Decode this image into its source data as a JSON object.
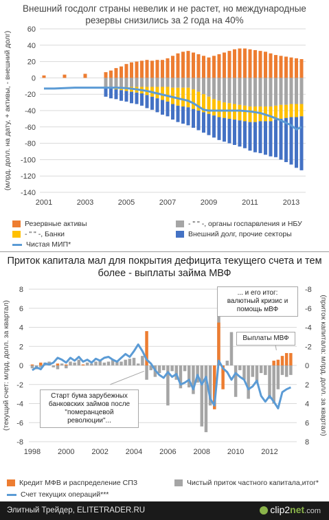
{
  "chart_data": [
    {
      "type": "bar",
      "title": "Внешний госдолг страны невелик и не растет, но международные резервы снизились за 2 года на 40%",
      "ylabel": "(млрд. долл. на дату, + активы, - внешний долг)",
      "ylim": [
        -140,
        60
      ],
      "yticks": [
        "60",
        "40",
        "20",
        "0",
        "-20",
        "-40",
        "-60",
        "-80",
        "-100",
        "-120",
        "-140"
      ],
      "xticks": [
        "2001",
        "2003",
        "2005",
        "2007",
        "2009",
        "2011",
        "2013"
      ],
      "grid": true,
      "legend_position": "bottom",
      "x": [
        2001.0,
        2002.0,
        2003.0,
        2004.0,
        2004.25,
        2004.5,
        2004.75,
        2005.0,
        2005.25,
        2005.5,
        2005.75,
        2006.0,
        2006.25,
        2006.5,
        2006.75,
        2007.0,
        2007.25,
        2007.5,
        2007.75,
        2008.0,
        2008.25,
        2008.5,
        2008.75,
        2009.0,
        2009.25,
        2009.5,
        2009.75,
        2010.0,
        2010.25,
        2010.5,
        2010.75,
        2011.0,
        2011.25,
        2011.5,
        2011.75,
        2012.0,
        2012.25,
        2012.5,
        2012.75,
        2013.0,
        2013.25,
        2013.5
      ],
      "series": [
        {
          "name": "Резервные активы",
          "color": "#ed7d31",
          "values": [
            3,
            4,
            5,
            7,
            9,
            12,
            14,
            17,
            19,
            20,
            21,
            22,
            21,
            22,
            22,
            24,
            27,
            30,
            32,
            33,
            31,
            29,
            27,
            25,
            27,
            29,
            31,
            33,
            35,
            36,
            36,
            35,
            34,
            33,
            32,
            30,
            28,
            27,
            26,
            25,
            24,
            23
          ]
        },
        {
          "name": "- \" \" -, органы госуправления и НБУ",
          "color": "#a5a5a5",
          "values": [
            0,
            0,
            0,
            -11,
            -11,
            -11,
            -11,
            -11,
            -11,
            -11,
            -11,
            -11,
            -11,
            -11,
            -11,
            -11,
            -12,
            -12,
            -12,
            -12,
            -14,
            -17,
            -20,
            -23,
            -26,
            -28,
            -30,
            -31,
            -32,
            -33,
            -34,
            -35,
            -35,
            -35,
            -35,
            -35,
            -34,
            -33,
            -33,
            -32,
            -32,
            -32
          ]
        },
        {
          "name": "- \" \" -, Банки",
          "color": "#ffc000",
          "values": [
            0,
            0,
            0,
            -1,
            -2,
            -3,
            -4,
            -5,
            -6,
            -7,
            -8,
            -10,
            -12,
            -14,
            -16,
            -18,
            -20,
            -22,
            -23,
            -24,
            -24,
            -23,
            -22,
            -21,
            -20,
            -20,
            -19,
            -19,
            -19,
            -19,
            -19,
            -19,
            -19,
            -18,
            -18,
            -18,
            -17,
            -17,
            -16,
            -16,
            -16,
            -15
          ]
        },
        {
          "name": "Внешний долг, прочие секторы",
          "color": "#4472c4",
          "values": [
            0,
            0,
            0,
            -11,
            -12,
            -12,
            -13,
            -13,
            -14,
            -14,
            -15,
            -16,
            -16,
            -17,
            -18,
            -18,
            -19,
            -20,
            -21,
            -22,
            -23,
            -24,
            -25,
            -26,
            -27,
            -28,
            -29,
            -30,
            -31,
            -32,
            -33,
            -35,
            -37,
            -39,
            -41,
            -43,
            -46,
            -50,
            -54,
            -58,
            -62,
            -66
          ]
        },
        {
          "name": "Чистая МИП*",
          "color": "#5b9bd5",
          "type": "line",
          "x": [
            2001.0,
            2001.5,
            2002.0,
            2002.5,
            2003.0,
            2003.5,
            2004.0,
            2004.5,
            2005.0,
            2005.5,
            2006.0,
            2006.5,
            2007.0,
            2007.5,
            2008.0,
            2008.25,
            2008.5,
            2008.75,
            2009.0,
            2009.5,
            2010.0,
            2010.5,
            2011.0,
            2011.5,
            2012.0,
            2012.5,
            2013.0,
            2013.25,
            2013.5
          ],
          "values": [
            -13,
            -13,
            -12.5,
            -12,
            -12,
            -12,
            -12,
            -12,
            -12.5,
            -14,
            -16,
            -19,
            -22,
            -25,
            -28,
            -31,
            -35,
            -39,
            -40,
            -40,
            -40,
            -40,
            -41,
            -43,
            -47,
            -52,
            -58,
            -63,
            -60
          ]
        }
      ]
    },
    {
      "type": "bar",
      "title": "Приток капитала мал для покрытия дефицита текущего счета и тем более - выплаты займа МВФ",
      "ylabel": "(текущий счет: млрд. долл. за квартал)",
      "y2label": "(приток капитала: млрд. долл. за квартал)",
      "ylim": [
        -8,
        8
      ],
      "yticks": [
        "8",
        "6",
        "4",
        "2",
        "0",
        "-2",
        "-4",
        "-6",
        "-8"
      ],
      "y2ticks": [
        "-8",
        "-6",
        "-4",
        "-2",
        "0",
        "2",
        "4",
        "6",
        "8"
      ],
      "xticks": [
        "1998",
        "2000",
        "2002",
        "2004",
        "2006",
        "2008",
        "2010",
        "2012"
      ],
      "grid": true,
      "legend_position": "bottom",
      "x": [
        1998.0,
        1998.25,
        1998.5,
        1998.75,
        1999.0,
        1999.25,
        1999.5,
        1999.75,
        2000.0,
        2000.25,
        2000.5,
        2000.75,
        2001.0,
        2001.25,
        2001.5,
        2001.75,
        2002.0,
        2002.25,
        2002.5,
        2002.75,
        2003.0,
        2003.25,
        2003.5,
        2003.75,
        2004.0,
        2004.25,
        2004.5,
        2004.75,
        2005.0,
        2005.25,
        2005.5,
        2005.75,
        2006.0,
        2006.25,
        2006.5,
        2006.75,
        2007.0,
        2007.25,
        2007.5,
        2007.75,
        2008.0,
        2008.25,
        2008.5,
        2008.75,
        2009.0,
        2009.25,
        2009.5,
        2009.75,
        2010.0,
        2010.25,
        2010.5,
        2010.75,
        2011.0,
        2011.25,
        2011.5,
        2011.75,
        2012.0,
        2012.25,
        2012.5,
        2012.75,
        2013.0,
        2013.25
      ],
      "series": [
        {
          "name": "Кредит МФВ и распределение СПЗ",
          "color": "#ed7d31",
          "values": [
            0.1,
            0,
            0.3,
            0,
            0.2,
            0,
            0.2,
            0,
            0.1,
            0,
            0,
            0,
            0.1,
            0,
            0,
            0,
            0,
            0,
            0,
            0,
            0,
            0,
            0,
            0,
            0,
            0,
            0,
            3.6,
            0,
            0,
            0,
            0,
            0,
            0,
            0,
            0,
            0,
            0,
            0,
            0,
            0,
            0,
            0,
            -4.6,
            4.5,
            -2.5,
            0,
            0,
            0,
            0,
            0,
            0,
            0,
            0,
            0,
            0,
            0,
            0.5,
            0.6,
            1,
            1.3,
            1.3
          ]
        },
        {
          "name": "Чистый приток частного капитала,итог*",
          "color": "#a5a5a5",
          "values": [
            -0.3,
            -0.4,
            -0.2,
            0.3,
            0.4,
            -0.2,
            -0.4,
            0.2,
            -0.3,
            0.4,
            0.3,
            0.6,
            0.1,
            0.3,
            0.2,
            0.4,
            0.5,
            0.3,
            0.4,
            0.6,
            0.5,
            0.4,
            0.6,
            0.7,
            0.8,
            0.2,
            1.0,
            -1.5,
            -0.5,
            -1.2,
            -0.8,
            -0.5,
            -4.2,
            -0.6,
            -1.5,
            -2.4,
            -0.6,
            -2.3,
            -3.0,
            -1.8,
            -6.4,
            -7.0,
            -4.2,
            -3.2,
            6.0,
            -0.8,
            0.5,
            3.5,
            -3.3,
            -0.5,
            -1.5,
            -3.5,
            -1.2,
            -1.8,
            -0.8,
            -1.0,
            -3.5,
            -4.0,
            -2.5,
            -1.0,
            -1.2,
            -1.0
          ]
        },
        {
          "name": "Счет текущих операций***",
          "color": "#5b9bd5",
          "type": "line",
          "values": [
            -0.5,
            -0.2,
            -0.4,
            0.2,
            0.1,
            0.3,
            0.8,
            0.6,
            0.3,
            0.8,
            0.5,
            0.9,
            0.4,
            0.6,
            0.3,
            0.7,
            0.5,
            0.8,
            0.9,
            0.6,
            0.4,
            0.8,
            1.2,
            0.9,
            1.5,
            2.2,
            1.5,
            0.6,
            0.2,
            -0.5,
            -1.0,
            -1.3,
            -0.7,
            -1.2,
            -0.9,
            -2.0,
            -1.8,
            -1.5,
            -2.5,
            -1.0,
            -2.0,
            -1.2,
            -3.5,
            -4.2,
            0.5,
            -0.3,
            -0.7,
            -1.5,
            -0.8,
            -1.2,
            -1.5,
            -2.5,
            -2.2,
            -1.6,
            -3.2,
            -3.8,
            -3.2,
            -3.8,
            -4.5,
            -2.8,
            -2.5,
            -2.3
          ]
        }
      ]
    }
  ],
  "chart1": {
    "title": "Внешний госдолг страны невелик и не растет, но международные резервы снизились за 2 года на 40%",
    "ylabel": "(млрд. долл. на дату, + активы, - внешний долг)",
    "legend": {
      "reserves": "Резервные активы",
      "gov": "- \" \" -, органы госпарвления и НБУ",
      "banks": "- \" \" -, Банки",
      "other": "Внешний долг, прочие секторы",
      "niip": "Чистая МИП*"
    }
  },
  "chart2": {
    "title": "Приток капитала мал для покрытия дефицита текущего счета и тем более - выплаты займа МВФ",
    "ylabel": "(текущий счет: млрд. долл. за квартал)",
    "y2label": "(приток капитала: млрд. долл. за квартал)",
    "annotations": {
      "crisis": "... и его итог: валютный кризис и помощь мВФ",
      "imf": "Выплаты МВФ",
      "boom": "Старт бума зарубежных банковских займов после \"померанцевой революции\"..."
    },
    "legend": {
      "imf": "Кредит МФВ и распределение СПЗ",
      "private": "Чистый приток частного капитала,итог*",
      "current": "Счет текущих операций***"
    }
  },
  "footer": {
    "left": "Элитный Трейдер, ELITETRADER.RU",
    "logo_main": "clip2",
    "logo_accent": "net",
    "logo_suffix": ".com"
  }
}
